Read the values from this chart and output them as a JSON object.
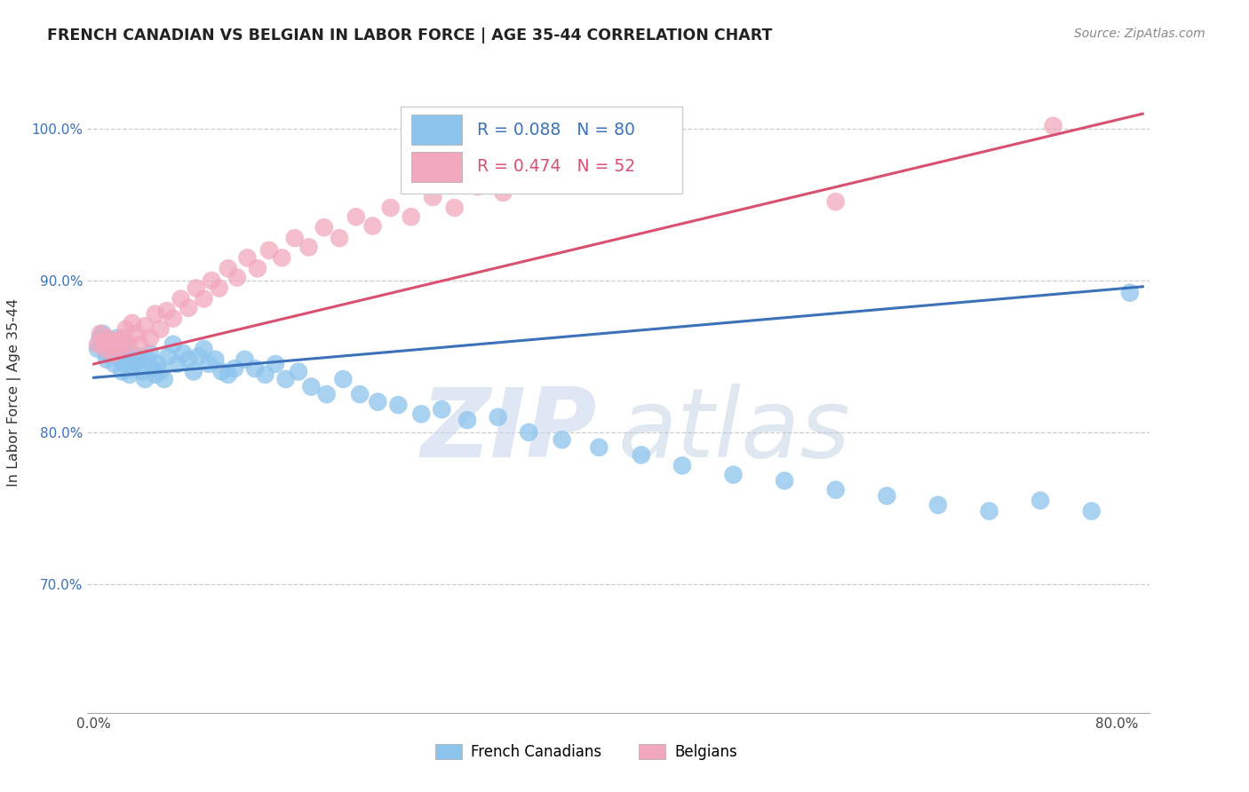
{
  "title": "FRENCH CANADIAN VS BELGIAN IN LABOR FORCE | AGE 35-44 CORRELATION CHART",
  "source": "Source: ZipAtlas.com",
  "ylabel": "In Labor Force | Age 35-44",
  "ylim": [
    0.615,
    1.038
  ],
  "xlim": [
    -0.005,
    0.825
  ],
  "blue_R": 0.088,
  "blue_N": 80,
  "pink_R": 0.474,
  "pink_N": 52,
  "blue_color": "#8DC4ED",
  "pink_color": "#F2A8BC",
  "blue_line_color": "#3B72B9",
  "pink_line_color": "#D95070",
  "legend_label_blue": "French Canadians",
  "legend_label_pink": "Belgians",
  "watermark_zip": "ZIP",
  "watermark_atlas": "atlas",
  "blue_line_x0": 0.0,
  "blue_line_x1": 0.82,
  "blue_line_y0": 0.836,
  "blue_line_y1": 0.896,
  "pink_line_x0": 0.0,
  "pink_line_x1": 0.82,
  "pink_line_y0": 0.845,
  "pink_line_y1": 1.01,
  "blue_dots_x": [
    0.003,
    0.005,
    0.006,
    0.007,
    0.008,
    0.009,
    0.01,
    0.011,
    0.012,
    0.013,
    0.014,
    0.015,
    0.016,
    0.017,
    0.018,
    0.019,
    0.02,
    0.021,
    0.022,
    0.023,
    0.024,
    0.025,
    0.026,
    0.028,
    0.03,
    0.032,
    0.034,
    0.036,
    0.038,
    0.04,
    0.042,
    0.044,
    0.046,
    0.048,
    0.05,
    0.052,
    0.055,
    0.058,
    0.062,
    0.065,
    0.07,
    0.074,
    0.078,
    0.082,
    0.086,
    0.09,
    0.095,
    0.1,
    0.105,
    0.11,
    0.118,
    0.126,
    0.134,
    0.142,
    0.15,
    0.16,
    0.17,
    0.182,
    0.195,
    0.208,
    0.222,
    0.238,
    0.256,
    0.272,
    0.292,
    0.316,
    0.34,
    0.366,
    0.395,
    0.428,
    0.46,
    0.5,
    0.54,
    0.58,
    0.62,
    0.66,
    0.7,
    0.74,
    0.78,
    0.81
  ],
  "blue_dots_y": [
    0.855,
    0.862,
    0.858,
    0.865,
    0.86,
    0.853,
    0.848,
    0.856,
    0.852,
    0.86,
    0.858,
    0.852,
    0.845,
    0.858,
    0.862,
    0.85,
    0.855,
    0.848,
    0.84,
    0.852,
    0.858,
    0.845,
    0.85,
    0.838,
    0.842,
    0.845,
    0.85,
    0.848,
    0.84,
    0.835,
    0.848,
    0.852,
    0.842,
    0.838,
    0.845,
    0.84,
    0.835,
    0.85,
    0.858,
    0.845,
    0.852,
    0.848,
    0.84,
    0.85,
    0.855,
    0.845,
    0.848,
    0.84,
    0.838,
    0.842,
    0.848,
    0.842,
    0.838,
    0.845,
    0.835,
    0.84,
    0.83,
    0.825,
    0.835,
    0.825,
    0.82,
    0.818,
    0.812,
    0.815,
    0.808,
    0.81,
    0.8,
    0.795,
    0.79,
    0.785,
    0.778,
    0.772,
    0.768,
    0.762,
    0.758,
    0.752,
    0.748,
    0.755,
    0.748,
    0.892
  ],
  "pink_dots_x": [
    0.003,
    0.005,
    0.007,
    0.009,
    0.011,
    0.013,
    0.015,
    0.017,
    0.019,
    0.021,
    0.023,
    0.025,
    0.027,
    0.03,
    0.033,
    0.036,
    0.04,
    0.044,
    0.048,
    0.052,
    0.057,
    0.062,
    0.068,
    0.074,
    0.08,
    0.086,
    0.092,
    0.098,
    0.105,
    0.112,
    0.12,
    0.128,
    0.137,
    0.147,
    0.157,
    0.168,
    0.18,
    0.192,
    0.205,
    0.218,
    0.232,
    0.248,
    0.265,
    0.282,
    0.3,
    0.32,
    0.34,
    0.365,
    0.39,
    0.42,
    0.58,
    0.75
  ],
  "pink_dots_y": [
    0.858,
    0.865,
    0.86,
    0.855,
    0.862,
    0.858,
    0.852,
    0.86,
    0.858,
    0.855,
    0.862,
    0.868,
    0.858,
    0.872,
    0.865,
    0.858,
    0.87,
    0.862,
    0.878,
    0.868,
    0.88,
    0.875,
    0.888,
    0.882,
    0.895,
    0.888,
    0.9,
    0.895,
    0.908,
    0.902,
    0.915,
    0.908,
    0.92,
    0.915,
    0.928,
    0.922,
    0.935,
    0.928,
    0.942,
    0.936,
    0.948,
    0.942,
    0.955,
    0.948,
    0.962,
    0.958,
    0.965,
    0.972,
    0.978,
    0.985,
    0.952,
    1.002
  ]
}
